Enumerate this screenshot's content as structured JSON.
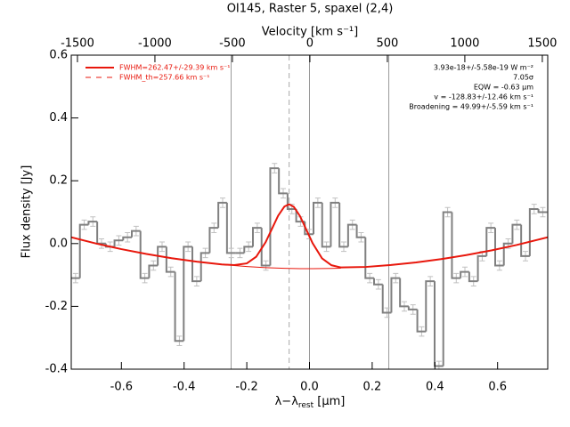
{
  "chart_data": {
    "type": "histogram",
    "title": "OI145, Raster 5, spaxel (2,4)",
    "x2label": "Velocity [km s⁻¹]",
    "ylabel": "Flux density [Jy]",
    "xlabel_parts": [
      "λ−λ",
      "rest",
      " [μm]"
    ],
    "xlim": [
      -0.76,
      0.76
    ],
    "ylim": [
      -0.4,
      0.6
    ],
    "x2lim": [
      -1540,
      1535
    ],
    "xticks": [
      -0.6,
      -0.4,
      -0.2,
      {
        "value": 0,
        "label": "0.0"
      },
      0.2,
      0.4,
      0.6
    ],
    "yticks": [
      -0.4,
      -0.2,
      {
        "value": 0,
        "label": "0.0"
      },
      0.2,
      0.4,
      0.6
    ],
    "x2ticks": [
      -1500,
      -1000,
      -500,
      0,
      500,
      1000,
      1500
    ],
    "color": "#808080",
    "error_color": "#c0c0c0",
    "bins": [
      -0.76,
      -0.7324,
      -0.7048,
      -0.6772,
      -0.6496,
      -0.622,
      -0.5944,
      -0.5668,
      -0.5392,
      -0.5116,
      -0.484,
      -0.4564,
      -0.4288,
      -0.4012,
      -0.3736,
      -0.346,
      -0.3184,
      -0.2908,
      -0.2632,
      -0.2356,
      -0.208,
      -0.1804,
      -0.1528,
      -0.1252,
      -0.0976,
      -0.07,
      -0.0424,
      -0.0148,
      0.0128,
      0.0404,
      0.068,
      0.0956,
      0.1232,
      0.1508,
      0.1784,
      0.206,
      0.2336,
      0.2612,
      0.2888,
      0.3164,
      0.344,
      0.3716,
      0.3992,
      0.4268,
      0.4544,
      0.482,
      0.5096,
      0.5372,
      0.5648,
      0.5924,
      0.62,
      0.6476,
      0.6752,
      0.7028,
      0.7304,
      0.758
    ],
    "values": [
      -0.11,
      0.06,
      0.07,
      0.0,
      -0.01,
      0.01,
      0.02,
      0.04,
      -0.11,
      -0.07,
      -0.01,
      -0.09,
      -0.31,
      -0.01,
      -0.12,
      -0.03,
      0.05,
      0.13,
      -0.03,
      -0.03,
      -0.01,
      0.05,
      -0.07,
      0.24,
      0.16,
      0.11,
      0.07,
      0.03,
      0.13,
      -0.01,
      0.13,
      -0.01,
      0.06,
      0.02,
      -0.11,
      -0.13,
      -0.22,
      -0.11,
      -0.2,
      -0.21,
      -0.28,
      -0.12,
      -0.39,
      0.1,
      -0.11,
      -0.09,
      -0.12,
      -0.04,
      0.05,
      -0.07,
      0.0,
      0.06,
      -0.04,
      0.11,
      0.1
    ],
    "errors": [
      0.015,
      0.015,
      0.015,
      0.015,
      0.015,
      0.015,
      0.015,
      0.015,
      0.015,
      0.015,
      0.015,
      0.015,
      0.015,
      0.015,
      0.015,
      0.015,
      0.015,
      0.015,
      0.015,
      0.015,
      0.015,
      0.015,
      0.015,
      0.015,
      0.015,
      0.015,
      0.015,
      0.015,
      0.015,
      0.015,
      0.015,
      0.015,
      0.015,
      0.015,
      0.015,
      0.015,
      0.015,
      0.015,
      0.015,
      0.015,
      0.015,
      0.015,
      0.015,
      0.015,
      0.015,
      0.015,
      0.015,
      0.015,
      0.015,
      0.015,
      0.015,
      0.015,
      0.015,
      0.015,
      0.015
    ],
    "fits": [
      {
        "color": "#e8170c",
        "width": 2,
        "x": [
          -0.76,
          -0.68,
          -0.6,
          -0.52,
          -0.44,
          -0.36,
          -0.28,
          -0.24,
          -0.2,
          -0.17,
          -0.14,
          -0.12,
          -0.1,
          -0.08,
          -0.065,
          -0.05,
          -0.03,
          -0.01,
          0.01,
          0.04,
          0.07,
          0.1,
          0.18,
          0.26,
          0.34,
          0.42,
          0.5,
          0.58,
          0.66,
          0.76
        ],
        "values": [
          0.0199,
          0.0,
          -0.0177,
          -0.0332,
          -0.0465,
          -0.0576,
          -0.0664,
          -0.0687,
          -0.0631,
          -0.042,
          0.0044,
          0.0465,
          0.0887,
          0.118,
          0.125,
          0.117,
          0.087,
          0.044,
          0.001,
          -0.047,
          -0.069,
          -0.076,
          -0.0744,
          -0.0683,
          -0.06,
          -0.0495,
          -0.0368,
          -0.0218,
          -0.0046,
          0.0199
        ]
      },
      {
        "color": "#e8170c",
        "width": 1,
        "x": [
          -0.24,
          -0.2,
          -0.14,
          -0.08,
          -0.03,
          0.01,
          0.07,
          0.1
        ],
        "values": [
          -0.07,
          -0.0731,
          -0.0766,
          -0.0789,
          -0.0798,
          -0.08,
          -0.0792,
          -0.0783
        ]
      }
    ],
    "vlines": [
      -0.25,
      0,
      0.253
    ],
    "vline_dashed": -0.065,
    "legend": [
      {
        "label": "FWHM=262.47+/-29.39 km s⁻¹",
        "dash": false
      },
      {
        "label": "FWHM_th=257.66 km s⁻¹",
        "dash": true
      }
    ],
    "annotations": [
      "3.93e-18+/-5.58e-19 W m⁻²",
      "7.05σ",
      "EQW = -0.63 μm",
      "v = -128.83+/-12.46 km s⁻¹",
      "Broadening = 49.99+/-5.59 km s⁻¹"
    ]
  }
}
